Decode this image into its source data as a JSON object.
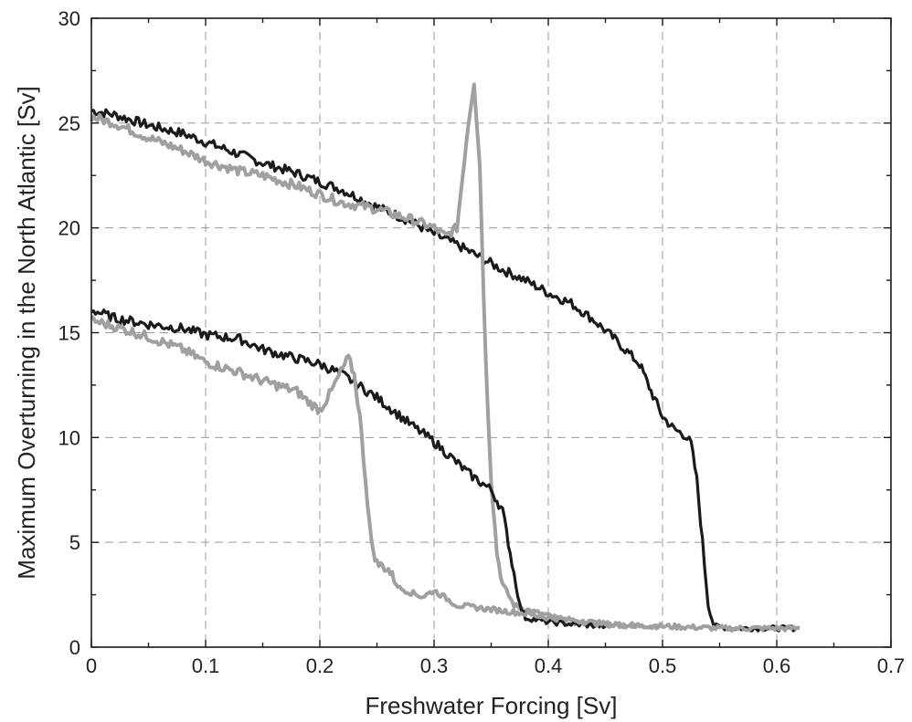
{
  "chart_data": {
    "type": "line",
    "xlabel": "Freshwater Forcing [Sv]",
    "ylabel": "Maximum Overturning in the North Atlantic [Sv]",
    "xlim": [
      0,
      0.7
    ],
    "ylim": [
      0,
      30
    ],
    "xticks": [
      "0",
      "0.1",
      "0.2",
      "0.3",
      "0.4",
      "0.5",
      "0.6",
      "0.7"
    ],
    "yticks": [
      "0",
      "5",
      "10",
      "15",
      "20",
      "25",
      "30"
    ],
    "grid": true,
    "legend": "none",
    "series": [
      {
        "color": "#1a1a1a",
        "x": [
          0,
          0.02,
          0.05,
          0.08,
          0.1,
          0.13,
          0.15,
          0.18,
          0.2,
          0.22,
          0.25,
          0.28,
          0.3,
          0.32,
          0.34,
          0.36,
          0.38,
          0.4,
          0.42,
          0.44,
          0.46,
          0.48,
          0.49,
          0.5,
          0.51,
          0.52,
          0.525,
          0.53,
          0.535,
          0.54,
          0.545,
          0.56,
          0.58,
          0.6,
          0.62
        ],
        "y": [
          25.6,
          25.4,
          24.9,
          24.5,
          24.1,
          23.5,
          23.1,
          22.6,
          22.2,
          21.8,
          21.0,
          20.3,
          19.7,
          19.2,
          18.6,
          18.0,
          17.5,
          16.9,
          16.4,
          15.6,
          14.6,
          13.5,
          12.2,
          11.0,
          10.4,
          10.1,
          9.7,
          8.0,
          5.0,
          2.0,
          1.0,
          0.9,
          0.9,
          0.9,
          0.9
        ]
      },
      {
        "color": "#a0a0a0",
        "x": [
          0,
          0.02,
          0.05,
          0.08,
          0.1,
          0.13,
          0.15,
          0.18,
          0.2,
          0.22,
          0.25,
          0.28,
          0.3,
          0.31,
          0.32,
          0.325,
          0.33,
          0.335,
          0.34,
          0.345,
          0.35,
          0.355,
          0.36,
          0.37,
          0.38,
          0.4,
          0.42,
          0.45,
          0.5,
          0.55,
          0.6,
          0.62
        ],
        "y": [
          25.3,
          25.0,
          24.3,
          23.7,
          23.2,
          22.7,
          22.5,
          22.0,
          21.6,
          21.2,
          20.9,
          20.4,
          20.0,
          19.6,
          20.0,
          22.5,
          25.0,
          27.0,
          23.0,
          14.0,
          8.0,
          4.5,
          3.0,
          2.0,
          1.8,
          1.5,
          1.2,
          1.1,
          1.0,
          0.9,
          0.9,
          0.9
        ]
      },
      {
        "color": "#1a1a1a",
        "x": [
          0,
          0.02,
          0.05,
          0.08,
          0.1,
          0.13,
          0.15,
          0.17,
          0.2,
          0.22,
          0.25,
          0.28,
          0.3,
          0.33,
          0.35,
          0.36,
          0.365,
          0.37,
          0.375,
          0.38,
          0.4,
          0.42,
          0.45
        ],
        "y": [
          16.1,
          15.7,
          15.4,
          15.2,
          14.9,
          14.7,
          14.2,
          13.9,
          13.5,
          13.0,
          11.9,
          10.6,
          9.8,
          8.3,
          7.5,
          6.5,
          5.0,
          3.5,
          2.0,
          1.4,
          1.2,
          1.1,
          1.0
        ]
      },
      {
        "color": "#a0a0a0",
        "x": [
          0,
          0.02,
          0.05,
          0.08,
          0.1,
          0.13,
          0.15,
          0.18,
          0.19,
          0.2,
          0.21,
          0.22,
          0.225,
          0.23,
          0.235,
          0.24,
          0.245,
          0.25,
          0.26,
          0.27,
          0.28,
          0.29,
          0.3,
          0.32,
          0.35,
          0.38,
          0.4,
          0.42,
          0.45,
          0.48,
          0.5
        ],
        "y": [
          15.6,
          15.3,
          14.8,
          14.2,
          13.6,
          13.1,
          12.7,
          12.2,
          11.7,
          11.3,
          12.2,
          13.3,
          13.8,
          13.0,
          11.0,
          8.0,
          5.0,
          4.0,
          3.7,
          2.8,
          2.6,
          2.4,
          2.7,
          2.0,
          1.8,
          1.6,
          1.4,
          1.3,
          1.1,
          1.0,
          1.0
        ]
      }
    ]
  }
}
